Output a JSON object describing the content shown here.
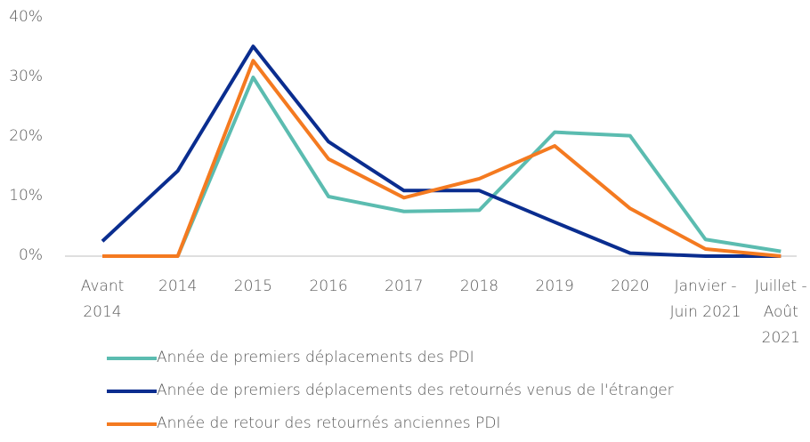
{
  "chart_data": {
    "type": "line",
    "categories": [
      "Avant 2014",
      "2014",
      "2015",
      "2016",
      "2017",
      "2018",
      "2019",
      "2020",
      "Janvier - Juin 2021",
      "Juillet - Août 2021"
    ],
    "series": [
      {
        "name": "Année de premiers déplacements des PDI",
        "color": "#5bbcb0",
        "values": [
          0,
          0,
          30,
          10,
          7.5,
          7.7,
          20.8,
          20.2,
          2.8,
          0.8
        ]
      },
      {
        "name": "Année de premiers déplacements des retournés venus de l'étranger",
        "color": "#0a2d8f",
        "values": [
          2.5,
          14.3,
          35.2,
          19.2,
          11,
          11,
          5.7,
          0.5,
          0,
          0
        ]
      },
      {
        "name": "Année de retour des retournés anciennes PDI",
        "color": "#f47a20",
        "values": [
          0,
          0,
          32.8,
          16.3,
          9.8,
          13,
          18.5,
          8,
          1.2,
          0
        ]
      }
    ],
    "ylim": [
      0,
      40
    ],
    "yticks": [
      {
        "value": 0,
        "label": "0%"
      },
      {
        "value": 10,
        "label": "10%"
      },
      {
        "value": 20,
        "label": "20%"
      },
      {
        "value": 30,
        "label": "30%"
      },
      {
        "value": 40,
        "label": "40%"
      }
    ],
    "grid": false
  }
}
